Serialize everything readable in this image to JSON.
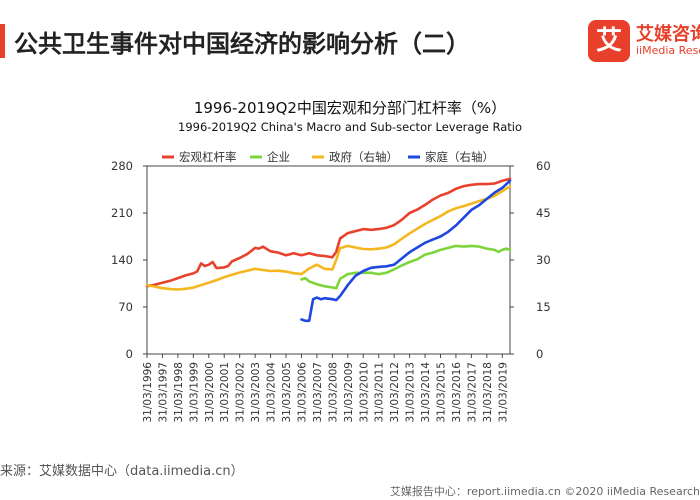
{
  "header": {
    "title": "公共卫生事件对中国经济的影响分析（二）",
    "accent_color": "#e8402a"
  },
  "logo": {
    "mark": "艾",
    "name_cn": "艾媒咨询",
    "name_en": "iiMedia Research"
  },
  "source_text": "来源：艾媒数据中心（data.iimedia.cn）",
  "footer_text": "艾媒报告中心：report.iimedia.cn ©2020 iiMedia Research",
  "chart_data": {
    "type": "line",
    "title": "1996-2019Q2中国宏观和分部门杠杆率（%）",
    "subtitle": "1996-2019Q2 China's Macro and Sub-sector Leverage Ratio",
    "x_tick_labels": [
      "31/03/1996",
      "31/03/1997",
      "31/03/1998",
      "31/03/1999",
      "31/03/2000",
      "31/03/2001",
      "31/03/2002",
      "31/03/2003",
      "31/03/2004",
      "31/03/2005",
      "31/03/2006",
      "31/03/2007",
      "31/03/2008",
      "31/03/2009",
      "31/03/2010",
      "31/03/2011",
      "31/03/2012",
      "31/03/2013",
      "31/03/2014",
      "31/03/2015",
      "31/03/2016",
      "31/03/2017",
      "31/03/2018",
      "31/03/2019"
    ],
    "x_range": [
      1996.0,
      2019.5
    ],
    "y_left": {
      "range": [
        0,
        280
      ],
      "ticks": [
        0,
        70,
        140,
        210,
        280
      ]
    },
    "y_right": {
      "range": [
        0,
        60
      ],
      "ticks": [
        0,
        15,
        30,
        45,
        60
      ]
    },
    "grid": false,
    "legend_position": "top",
    "series": [
      {
        "name": "宏观杠杆率",
        "color": "#e8412c",
        "axis": "left",
        "points": [
          [
            1996.0,
            101
          ],
          [
            1996.5,
            103
          ],
          [
            1997.0,
            106
          ],
          [
            1997.5,
            109
          ],
          [
            1998.0,
            113
          ],
          [
            1998.5,
            117
          ],
          [
            1999.0,
            120
          ],
          [
            1999.25,
            123
          ],
          [
            1999.5,
            135
          ],
          [
            1999.75,
            131
          ],
          [
            2000.0,
            133
          ],
          [
            2000.25,
            137
          ],
          [
            2000.5,
            128
          ],
          [
            2001.0,
            129
          ],
          [
            2001.25,
            131
          ],
          [
            2001.5,
            138
          ],
          [
            2002.0,
            143
          ],
          [
            2002.5,
            149
          ],
          [
            2003.0,
            158
          ],
          [
            2003.25,
            157
          ],
          [
            2003.5,
            160
          ],
          [
            2004.0,
            153
          ],
          [
            2004.5,
            151
          ],
          [
            2005.0,
            147
          ],
          [
            2005.5,
            150
          ],
          [
            2006.0,
            147
          ],
          [
            2006.5,
            150
          ],
          [
            2007.0,
            147
          ],
          [
            2007.5,
            146
          ],
          [
            2008.0,
            144
          ],
          [
            2008.25,
            152
          ],
          [
            2008.5,
            172
          ],
          [
            2009.0,
            180
          ],
          [
            2009.5,
            183
          ],
          [
            2010.0,
            186
          ],
          [
            2010.5,
            185
          ],
          [
            2011.0,
            186
          ],
          [
            2011.5,
            188
          ],
          [
            2012.0,
            192
          ],
          [
            2012.5,
            200
          ],
          [
            2013.0,
            210
          ],
          [
            2013.5,
            215
          ],
          [
            2014.0,
            222
          ],
          [
            2014.5,
            230
          ],
          [
            2015.0,
            236
          ],
          [
            2015.5,
            240
          ],
          [
            2016.0,
            246
          ],
          [
            2016.5,
            250
          ],
          [
            2017.0,
            252
          ],
          [
            2017.5,
            253
          ],
          [
            2018.0,
            253
          ],
          [
            2018.5,
            254
          ],
          [
            2019.0,
            258
          ],
          [
            2019.5,
            261
          ]
        ]
      },
      {
        "name": "企业",
        "color": "#7ed43b",
        "axis": "left",
        "points": [
          [
            2006.0,
            111
          ],
          [
            2006.25,
            113
          ],
          [
            2006.5,
            108
          ],
          [
            2007.0,
            104
          ],
          [
            2007.5,
            101
          ],
          [
            2008.0,
            99
          ],
          [
            2008.25,
            98
          ],
          [
            2008.5,
            112
          ],
          [
            2009.0,
            119
          ],
          [
            2009.5,
            121
          ],
          [
            2010.0,
            121
          ],
          [
            2010.5,
            121
          ],
          [
            2011.0,
            119
          ],
          [
            2011.5,
            121
          ],
          [
            2012.0,
            126
          ],
          [
            2012.5,
            132
          ],
          [
            2013.0,
            137
          ],
          [
            2013.5,
            141
          ],
          [
            2014.0,
            148
          ],
          [
            2014.5,
            151
          ],
          [
            2015.0,
            155
          ],
          [
            2015.5,
            158
          ],
          [
            2016.0,
            161
          ],
          [
            2016.5,
            160
          ],
          [
            2017.0,
            161
          ],
          [
            2017.5,
            160
          ],
          [
            2018.0,
            157
          ],
          [
            2018.5,
            155
          ],
          [
            2018.75,
            152
          ],
          [
            2019.0,
            155
          ],
          [
            2019.25,
            157
          ],
          [
            2019.5,
            155
          ]
        ]
      },
      {
        "name": "政府（右轴）",
        "color": "#f4b81e",
        "axis": "right",
        "points": [
          [
            1996.0,
            22
          ],
          [
            1996.5,
            21.5
          ],
          [
            1997.0,
            21
          ],
          [
            1997.5,
            20.7
          ],
          [
            1998.0,
            20.6
          ],
          [
            1998.5,
            20.8
          ],
          [
            1999.0,
            21.2
          ],
          [
            1999.5,
            22
          ],
          [
            2000.0,
            22.8
          ],
          [
            2000.5,
            23.6
          ],
          [
            2001.0,
            24.5
          ],
          [
            2001.5,
            25.3
          ],
          [
            2002.0,
            26
          ],
          [
            2002.5,
            26.6
          ],
          [
            2003.0,
            27.2
          ],
          [
            2003.5,
            26.8
          ],
          [
            2004.0,
            26.5
          ],
          [
            2004.5,
            26.6
          ],
          [
            2005.0,
            26.3
          ],
          [
            2005.5,
            25.8
          ],
          [
            2006.0,
            25.5
          ],
          [
            2006.5,
            27.3
          ],
          [
            2007.0,
            28.5
          ],
          [
            2007.5,
            27.2
          ],
          [
            2008.0,
            27
          ],
          [
            2008.25,
            30
          ],
          [
            2008.5,
            33.8
          ],
          [
            2009.0,
            34.5
          ],
          [
            2009.5,
            34
          ],
          [
            2010.0,
            33.5
          ],
          [
            2010.5,
            33.4
          ],
          [
            2011.0,
            33.6
          ],
          [
            2011.5,
            34
          ],
          [
            2012.0,
            35
          ],
          [
            2012.5,
            36.8
          ],
          [
            2013.0,
            38.5
          ],
          [
            2013.5,
            40
          ],
          [
            2014.0,
            41.5
          ],
          [
            2014.5,
            42.8
          ],
          [
            2015.0,
            44
          ],
          [
            2015.5,
            45.5
          ],
          [
            2016.0,
            46.5
          ],
          [
            2016.5,
            47.2
          ],
          [
            2017.0,
            48
          ],
          [
            2017.5,
            48.8
          ],
          [
            2018.0,
            49.5
          ],
          [
            2018.5,
            50.5
          ],
          [
            2019.0,
            52
          ],
          [
            2019.5,
            53.5
          ]
        ]
      },
      {
        "name": "家庭（右轴）",
        "color": "#1e46e0",
        "axis": "right",
        "points": [
          [
            2006.0,
            11
          ],
          [
            2006.25,
            10.6
          ],
          [
            2006.5,
            10.6
          ],
          [
            2006.75,
            17.5
          ],
          [
            2007.0,
            18
          ],
          [
            2007.25,
            17.5
          ],
          [
            2007.5,
            17.8
          ],
          [
            2008.0,
            17.5
          ],
          [
            2008.25,
            17.2
          ],
          [
            2008.5,
            18.5
          ],
          [
            2009.0,
            22
          ],
          [
            2009.5,
            25
          ],
          [
            2010.0,
            26.5
          ],
          [
            2010.5,
            27.5
          ],
          [
            2011.0,
            27.8
          ],
          [
            2011.5,
            28
          ],
          [
            2012.0,
            28.5
          ],
          [
            2012.5,
            30.5
          ],
          [
            2013.0,
            32.5
          ],
          [
            2013.5,
            34
          ],
          [
            2014.0,
            35.5
          ],
          [
            2014.5,
            36.5
          ],
          [
            2015.0,
            37.5
          ],
          [
            2015.5,
            39
          ],
          [
            2016.0,
            41
          ],
          [
            2016.5,
            43.5
          ],
          [
            2017.0,
            46
          ],
          [
            2017.5,
            47.5
          ],
          [
            2018.0,
            49.5
          ],
          [
            2018.5,
            51.5
          ],
          [
            2019.0,
            53
          ],
          [
            2019.5,
            55.3
          ]
        ]
      }
    ]
  }
}
